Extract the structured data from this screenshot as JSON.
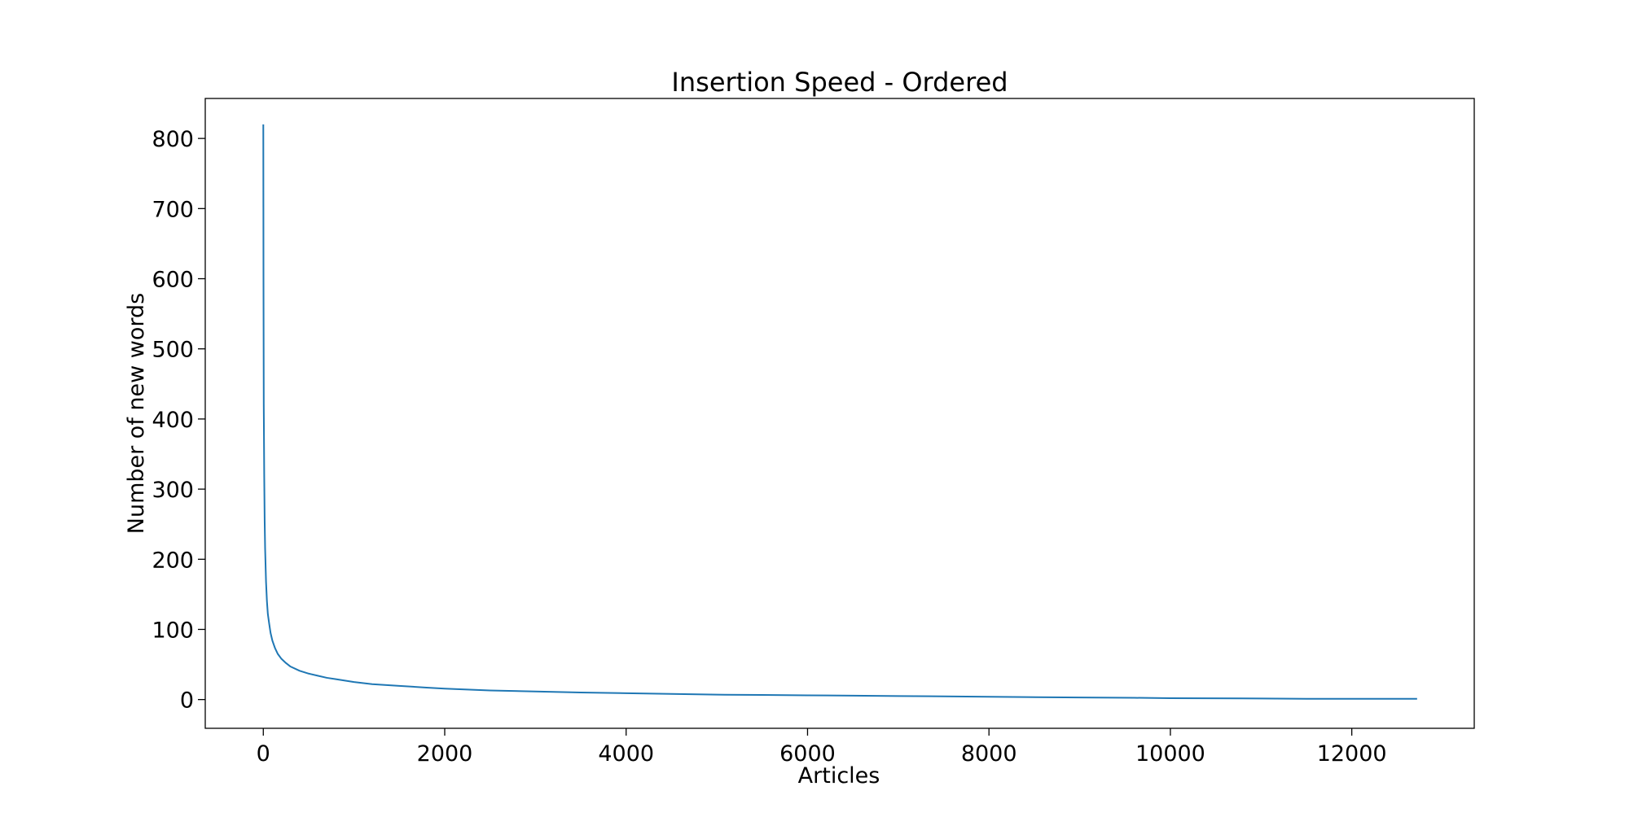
{
  "chart_data": {
    "type": "line",
    "title": "Insertion Speed - Ordered",
    "xlabel": "Articles",
    "ylabel": "Number of new words",
    "xlim": [
      -640,
      13350
    ],
    "ylim": [
      -41,
      857
    ],
    "xticks": [
      0,
      2000,
      4000,
      6000,
      8000,
      10000,
      12000
    ],
    "xtick_labels": [
      "0",
      "2000",
      "4000",
      "6000",
      "8000",
      "10000",
      "12000"
    ],
    "yticks": [
      0,
      100,
      200,
      300,
      400,
      500,
      600,
      700,
      800
    ],
    "ytick_labels": [
      "0",
      "100",
      "200",
      "300",
      "400",
      "500",
      "600",
      "700",
      "800"
    ],
    "grid": false,
    "legend": "none",
    "series": [
      {
        "color": "#1f77b4",
        "x": [
          0,
          2,
          5,
          10,
          15,
          20,
          30,
          40,
          50,
          65,
          80,
          100,
          130,
          160,
          200,
          250,
          300,
          400,
          500,
          600,
          700,
          800,
          1000,
          1200,
          1500,
          1800,
          2000,
          2500,
          3000,
          3500,
          4000,
          4500,
          5000,
          5500,
          6000,
          6500,
          7000,
          7500,
          8000,
          8400,
          9000,
          9600,
          10000,
          11000,
          11500,
          12000,
          12500,
          12720
        ],
        "y": [
          820,
          600,
          420,
          320,
          255,
          215,
          168,
          140,
          122,
          108,
          95,
          84,
          73,
          65,
          58,
          52,
          47,
          41,
          37,
          34,
          31,
          29,
          25,
          22,
          19.5,
          17,
          15.5,
          13,
          11.5,
          10,
          9,
          8,
          7,
          6.5,
          6,
          5.5,
          5,
          4.5,
          4,
          3.5,
          3,
          2.5,
          2,
          1.5,
          1,
          1,
          1,
          1
        ]
      }
    ]
  }
}
